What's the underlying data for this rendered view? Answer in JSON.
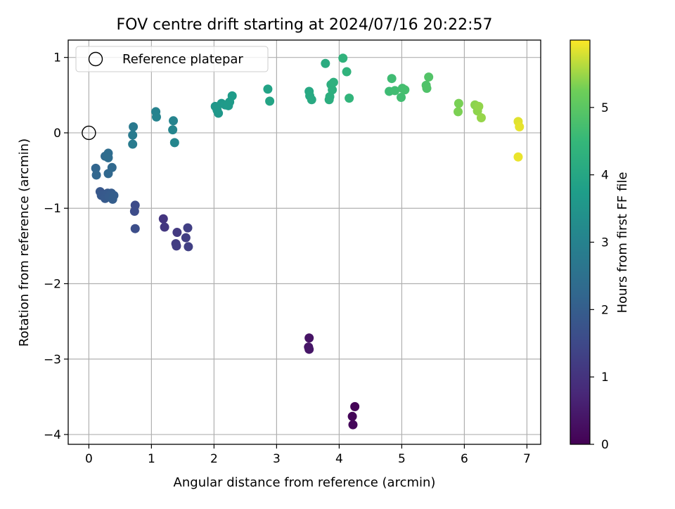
{
  "chart_data": {
    "type": "scatter",
    "title": "FOV centre drift starting at 2024/07/16 20:22:57",
    "xlabel": "Angular distance from reference (arcmin)",
    "ylabel": "Rotation from reference (arcmin)",
    "xlim": [
      -0.33,
      7.22
    ],
    "ylim": [
      -4.13,
      1.23
    ],
    "xticks": [
      0,
      1,
      2,
      3,
      4,
      5,
      6,
      7
    ],
    "yticks": [
      -4,
      -3,
      -2,
      -1,
      0,
      1
    ],
    "xtick_labels": [
      "0",
      "1",
      "2",
      "3",
      "4",
      "5",
      "6",
      "7"
    ],
    "ytick_labels": [
      "−4",
      "−3",
      "−2",
      "−1",
      "0",
      "1"
    ],
    "grid": true,
    "legend": {
      "position": "upper-left",
      "entries": [
        "Reference platepar"
      ]
    },
    "reference_point": {
      "x": 0,
      "y": 0
    },
    "colorbar": {
      "label": "Hours from first FF file",
      "colormap": "viridis",
      "range": [
        0,
        6.0
      ],
      "ticks": [
        0,
        1,
        2,
        3,
        4,
        5
      ],
      "tick_labels": [
        "0",
        "1",
        "2",
        "3",
        "4",
        "5"
      ]
    },
    "points": [
      {
        "x": 4.25,
        "y": -3.63,
        "h": 0.05
      },
      {
        "x": 4.21,
        "y": -3.76,
        "h": 0.08
      },
      {
        "x": 4.22,
        "y": -3.87,
        "h": 0.12
      },
      {
        "x": 3.52,
        "y": -2.72,
        "h": 0.35
      },
      {
        "x": 3.51,
        "y": -2.84,
        "h": 0.38
      },
      {
        "x": 3.52,
        "y": -2.87,
        "h": 0.4
      },
      {
        "x": 1.19,
        "y": -1.14,
        "h": 1.05
      },
      {
        "x": 1.21,
        "y": -1.25,
        "h": 1.1
      },
      {
        "x": 1.41,
        "y": -1.32,
        "h": 1.15
      },
      {
        "x": 1.39,
        "y": -1.47,
        "h": 1.2
      },
      {
        "x": 1.4,
        "y": -1.5,
        "h": 1.22
      },
      {
        "x": 1.55,
        "y": -1.39,
        "h": 1.25
      },
      {
        "x": 1.58,
        "y": -1.26,
        "h": 1.28
      },
      {
        "x": 1.59,
        "y": -1.51,
        "h": 1.3
      },
      {
        "x": 0.74,
        "y": -0.96,
        "h": 1.55
      },
      {
        "x": 0.73,
        "y": -1.04,
        "h": 1.58
      },
      {
        "x": 0.74,
        "y": -1.27,
        "h": 1.62
      },
      {
        "x": 0.18,
        "y": -0.78,
        "h": 1.85
      },
      {
        "x": 0.2,
        "y": -0.83,
        "h": 1.88
      },
      {
        "x": 0.26,
        "y": -0.87,
        "h": 1.9
      },
      {
        "x": 0.3,
        "y": -0.8,
        "h": 1.92
      },
      {
        "x": 0.32,
        "y": -0.85,
        "h": 1.95
      },
      {
        "x": 0.36,
        "y": -0.8,
        "h": 1.97
      },
      {
        "x": 0.38,
        "y": -0.88,
        "h": 2.0
      },
      {
        "x": 0.4,
        "y": -0.83,
        "h": 2.02
      },
      {
        "x": 0.11,
        "y": -0.47,
        "h": 2.2
      },
      {
        "x": 0.12,
        "y": -0.56,
        "h": 2.22
      },
      {
        "x": 0.31,
        "y": -0.54,
        "h": 2.25
      },
      {
        "x": 0.37,
        "y": -0.46,
        "h": 2.28
      },
      {
        "x": 0.26,
        "y": -0.31,
        "h": 2.35
      },
      {
        "x": 0.31,
        "y": -0.27,
        "h": 2.38
      },
      {
        "x": 0.31,
        "y": -0.33,
        "h": 2.4
      },
      {
        "x": 0.71,
        "y": 0.08,
        "h": 2.75
      },
      {
        "x": 0.7,
        "y": -0.03,
        "h": 2.78
      },
      {
        "x": 0.7,
        "y": -0.15,
        "h": 2.8
      },
      {
        "x": 1.07,
        "y": 0.28,
        "h": 3.0
      },
      {
        "x": 1.08,
        "y": 0.21,
        "h": 3.02
      },
      {
        "x": 1.35,
        "y": 0.16,
        "h": 3.05
      },
      {
        "x": 1.34,
        "y": 0.04,
        "h": 3.08
      },
      {
        "x": 1.37,
        "y": -0.13,
        "h": 3.1
      },
      {
        "x": 2.02,
        "y": 0.35,
        "h": 3.55
      },
      {
        "x": 2.05,
        "y": 0.3,
        "h": 3.58
      },
      {
        "x": 2.07,
        "y": 0.26,
        "h": 3.6
      },
      {
        "x": 2.12,
        "y": 0.39,
        "h": 3.62
      },
      {
        "x": 2.18,
        "y": 0.37,
        "h": 3.64
      },
      {
        "x": 2.23,
        "y": 0.36,
        "h": 3.66
      },
      {
        "x": 2.25,
        "y": 0.41,
        "h": 3.68
      },
      {
        "x": 2.29,
        "y": 0.49,
        "h": 3.7
      },
      {
        "x": 2.86,
        "y": 0.58,
        "h": 3.9
      },
      {
        "x": 2.89,
        "y": 0.42,
        "h": 3.92
      },
      {
        "x": 3.52,
        "y": 0.55,
        "h": 4.05
      },
      {
        "x": 3.53,
        "y": 0.49,
        "h": 4.07
      },
      {
        "x": 3.56,
        "y": 0.44,
        "h": 4.09
      },
      {
        "x": 3.78,
        "y": 0.92,
        "h": 4.15
      },
      {
        "x": 3.84,
        "y": 0.44,
        "h": 4.2
      },
      {
        "x": 3.85,
        "y": 0.48,
        "h": 4.22
      },
      {
        "x": 3.87,
        "y": 0.64,
        "h": 4.24
      },
      {
        "x": 3.89,
        "y": 0.57,
        "h": 4.26
      },
      {
        "x": 3.91,
        "y": 0.67,
        "h": 4.28
      },
      {
        "x": 4.06,
        "y": 0.99,
        "h": 4.35
      },
      {
        "x": 4.12,
        "y": 0.81,
        "h": 4.38
      },
      {
        "x": 4.16,
        "y": 0.46,
        "h": 4.4
      },
      {
        "x": 4.8,
        "y": 0.55,
        "h": 4.62
      },
      {
        "x": 4.84,
        "y": 0.72,
        "h": 4.64
      },
      {
        "x": 4.89,
        "y": 0.56,
        "h": 4.66
      },
      {
        "x": 4.99,
        "y": 0.47,
        "h": 4.68
      },
      {
        "x": 5.01,
        "y": 0.59,
        "h": 4.7
      },
      {
        "x": 5.05,
        "y": 0.57,
        "h": 4.72
      },
      {
        "x": 5.39,
        "y": 0.63,
        "h": 4.85
      },
      {
        "x": 5.4,
        "y": 0.59,
        "h": 4.87
      },
      {
        "x": 5.43,
        "y": 0.74,
        "h": 4.89
      },
      {
        "x": 5.91,
        "y": 0.39,
        "h": 5.3
      },
      {
        "x": 5.9,
        "y": 0.28,
        "h": 5.32
      },
      {
        "x": 6.17,
        "y": 0.37,
        "h": 5.4
      },
      {
        "x": 6.21,
        "y": 0.29,
        "h": 5.42
      },
      {
        "x": 6.23,
        "y": 0.35,
        "h": 5.44
      },
      {
        "x": 6.27,
        "y": 0.2,
        "h": 5.46
      },
      {
        "x": 6.86,
        "y": 0.15,
        "h": 5.85
      },
      {
        "x": 6.88,
        "y": 0.08,
        "h": 5.88
      },
      {
        "x": 6.86,
        "y": -0.32,
        "h": 5.9
      }
    ]
  }
}
